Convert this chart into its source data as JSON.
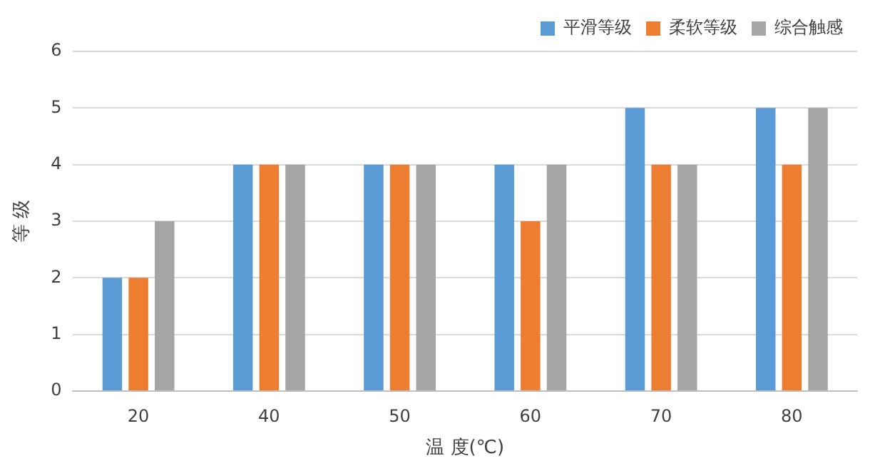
{
  "chart_data": {
    "type": "bar",
    "xlabel": "温 度(℃)",
    "ylabel": "等 级",
    "categories": [
      "20",
      "40",
      "50",
      "60",
      "70",
      "80"
    ],
    "series": [
      {
        "name": "平滑等级",
        "color": "#5b9bd5",
        "values": [
          2,
          4,
          4,
          4,
          5,
          5
        ]
      },
      {
        "name": "柔软等级",
        "color": "#ed7d31",
        "values": [
          2,
          4,
          4,
          3,
          4,
          4
        ]
      },
      {
        "name": "综合触感",
        "color": "#a5a5a5",
        "values": [
          3,
          4,
          4,
          4,
          4,
          5
        ]
      }
    ],
    "ylim": [
      0,
      6
    ],
    "yticks": [
      0,
      1,
      2,
      3,
      4,
      5,
      6
    ],
    "grid": "y",
    "legend": "top right"
  }
}
